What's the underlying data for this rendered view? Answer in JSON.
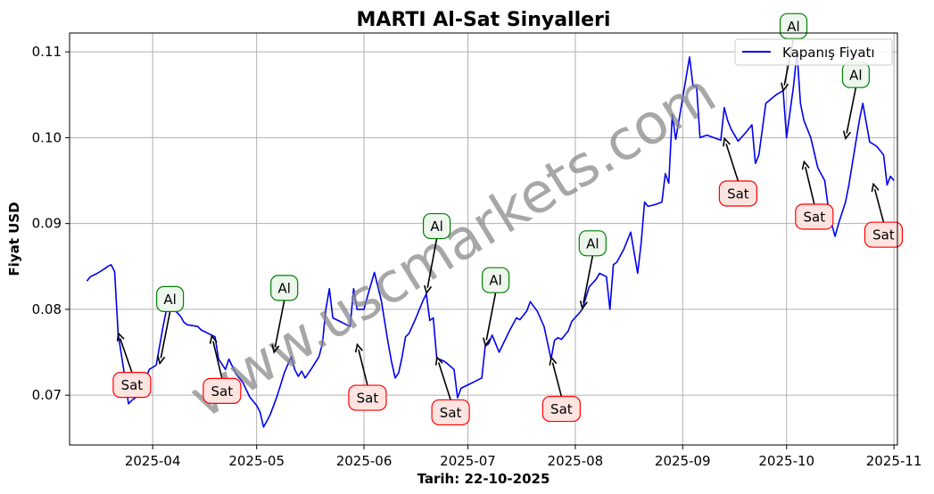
{
  "chart_data": {
    "type": "line",
    "title": "MARTI Al-Sat Sinyalleri",
    "xlabel": "Tarih: 22-10-2025",
    "ylabel": "Fiyat USD",
    "xlim": [
      "2025-03-08",
      "2025-11-02"
    ],
    "ylim": [
      0.0642,
      0.1122
    ],
    "x_ticks": [
      "2025-04",
      "2025-05",
      "2025-06",
      "2025-07",
      "2025-08",
      "2025-09",
      "2025-10",
      "2025-11"
    ],
    "y_ticks": [
      "0.07",
      "0.08",
      "0.09",
      "0.10",
      "0.11"
    ],
    "grid": true,
    "legend_position": "top-right",
    "watermark": "www.uscmarkets.com",
    "colors": {
      "line": "#0000ee",
      "buy_border": "#008000",
      "buy_fill": "#edf7ed",
      "sell_border": "#ff0000",
      "sell_fill": "#fde4e1",
      "grid": "#b0b0b0"
    },
    "series": [
      {
        "name": "Kapanış Fiyatı",
        "points": [
          [
            "2025-03-13",
            0.0833
          ],
          [
            "2025-03-14",
            0.0838
          ],
          [
            "2025-03-16",
            0.0842
          ],
          [
            "2025-03-18",
            0.0847
          ],
          [
            "2025-03-19",
            0.085
          ],
          [
            "2025-03-20",
            0.0852
          ],
          [
            "2025-03-21",
            0.0844
          ],
          [
            "2025-03-22",
            0.0772
          ],
          [
            "2025-03-24",
            0.072
          ],
          [
            "2025-03-25",
            0.069
          ],
          [
            "2025-03-26",
            0.0694
          ],
          [
            "2025-03-28",
            0.07
          ],
          [
            "2025-03-31",
            0.073
          ],
          [
            "2025-04-02",
            0.0735
          ],
          [
            "2025-04-04",
            0.078
          ],
          [
            "2025-04-05",
            0.08
          ],
          [
            "2025-04-06",
            0.0805
          ],
          [
            "2025-04-09",
            0.0792
          ],
          [
            "2025-04-10",
            0.0785
          ],
          [
            "2025-04-11",
            0.0782
          ],
          [
            "2025-04-14",
            0.078
          ],
          [
            "2025-04-15",
            0.0776
          ],
          [
            "2025-04-18",
            0.077
          ],
          [
            "2025-04-19",
            0.0768
          ],
          [
            "2025-04-20",
            0.0742
          ],
          [
            "2025-04-22",
            0.073
          ],
          [
            "2025-04-23",
            0.0742
          ],
          [
            "2025-04-25",
            0.0725
          ],
          [
            "2025-04-27",
            0.0715
          ],
          [
            "2025-04-29",
            0.0698
          ],
          [
            "2025-05-01",
            0.0688
          ],
          [
            "2025-05-02",
            0.068
          ],
          [
            "2025-05-03",
            0.0663
          ],
          [
            "2025-05-04",
            0.067
          ],
          [
            "2025-05-05",
            0.0678
          ],
          [
            "2025-05-07",
            0.07
          ],
          [
            "2025-05-09",
            0.0726
          ],
          [
            "2025-05-11",
            0.0745
          ],
          [
            "2025-05-12",
            0.073
          ],
          [
            "2025-05-13",
            0.0722
          ],
          [
            "2025-05-14",
            0.0728
          ],
          [
            "2025-05-15",
            0.072
          ],
          [
            "2025-05-17",
            0.0732
          ],
          [
            "2025-05-19",
            0.0745
          ],
          [
            "2025-05-20",
            0.076
          ],
          [
            "2025-05-21",
            0.08
          ],
          [
            "2025-05-22",
            0.0824
          ],
          [
            "2025-05-23",
            0.079
          ],
          [
            "2025-05-26",
            0.0784
          ],
          [
            "2025-05-28",
            0.078
          ],
          [
            "2025-05-29",
            0.0824
          ],
          [
            "2025-05-30",
            0.08
          ],
          [
            "2025-06-01",
            0.08
          ],
          [
            "2025-06-02",
            0.0815
          ],
          [
            "2025-06-04",
            0.0843
          ],
          [
            "2025-06-06",
            0.081
          ],
          [
            "2025-06-08",
            0.076
          ],
          [
            "2025-06-09",
            0.0738
          ],
          [
            "2025-06-10",
            0.072
          ],
          [
            "2025-06-11",
            0.0726
          ],
          [
            "2025-06-12",
            0.0745
          ],
          [
            "2025-06-13",
            0.0768
          ],
          [
            "2025-06-14",
            0.0772
          ],
          [
            "2025-06-16",
            0.079
          ],
          [
            "2025-06-18",
            0.081
          ],
          [
            "2025-06-19",
            0.0818
          ],
          [
            "2025-06-20",
            0.0787
          ],
          [
            "2025-06-21",
            0.079
          ],
          [
            "2025-06-22",
            0.0743
          ],
          [
            "2025-06-24",
            0.074
          ],
          [
            "2025-06-25",
            0.0737
          ],
          [
            "2025-06-27",
            0.073
          ],
          [
            "2025-06-28",
            0.0697
          ],
          [
            "2025-06-29",
            0.0708
          ],
          [
            "2025-07-01",
            0.0712
          ],
          [
            "2025-07-03",
            0.0716
          ],
          [
            "2025-07-05",
            0.072
          ],
          [
            "2025-07-06",
            0.0757
          ],
          [
            "2025-07-07",
            0.076
          ],
          [
            "2025-07-08",
            0.077
          ],
          [
            "2025-07-10",
            0.075
          ],
          [
            "2025-07-13",
            0.0775
          ],
          [
            "2025-07-15",
            0.079
          ],
          [
            "2025-07-16",
            0.0788
          ],
          [
            "2025-07-18",
            0.0798
          ],
          [
            "2025-07-19",
            0.0809
          ],
          [
            "2025-07-21",
            0.0798
          ],
          [
            "2025-07-23",
            0.078
          ],
          [
            "2025-07-25",
            0.0742
          ],
          [
            "2025-07-26",
            0.0764
          ],
          [
            "2025-07-27",
            0.0767
          ],
          [
            "2025-07-28",
            0.0765
          ],
          [
            "2025-07-30",
            0.0775
          ],
          [
            "2025-07-31",
            0.0786
          ],
          [
            "2025-08-02",
            0.0795
          ],
          [
            "2025-08-03",
            0.08
          ],
          [
            "2025-08-05",
            0.0826
          ],
          [
            "2025-08-07",
            0.0835
          ],
          [
            "2025-08-08",
            0.0842
          ],
          [
            "2025-08-10",
            0.0838
          ],
          [
            "2025-08-11",
            0.08
          ],
          [
            "2025-08-12",
            0.0852
          ],
          [
            "2025-08-13",
            0.0855
          ],
          [
            "2025-08-15",
            0.087
          ],
          [
            "2025-08-17",
            0.089
          ],
          [
            "2025-08-19",
            0.0842
          ],
          [
            "2025-08-20",
            0.0877
          ],
          [
            "2025-08-21",
            0.0925
          ],
          [
            "2025-08-22",
            0.092
          ],
          [
            "2025-08-24",
            0.0922
          ],
          [
            "2025-08-26",
            0.0925
          ],
          [
            "2025-08-27",
            0.0958
          ],
          [
            "2025-08-28",
            0.0947
          ],
          [
            "2025-08-29",
            0.1027
          ],
          [
            "2025-08-30",
            0.0998
          ],
          [
            "2025-09-02",
            0.107
          ],
          [
            "2025-09-03",
            0.1094
          ],
          [
            "2025-09-04",
            0.106
          ],
          [
            "2025-09-05",
            0.106
          ],
          [
            "2025-09-06",
            0.1
          ],
          [
            "2025-09-08",
            0.1003
          ],
          [
            "2025-09-10",
            0.1
          ],
          [
            "2025-09-12",
            0.0997
          ],
          [
            "2025-09-13",
            0.1035
          ],
          [
            "2025-09-14",
            0.102
          ],
          [
            "2025-09-15",
            0.101
          ],
          [
            "2025-09-17",
            0.0996
          ],
          [
            "2025-09-19",
            0.1005
          ],
          [
            "2025-09-21",
            0.1015
          ],
          [
            "2025-09-22",
            0.097
          ],
          [
            "2025-09-23",
            0.098
          ],
          [
            "2025-09-25",
            0.104
          ],
          [
            "2025-09-28",
            0.105
          ],
          [
            "2025-09-30",
            0.1055
          ],
          [
            "2025-10-01",
            0.1
          ],
          [
            "2025-10-03",
            0.106
          ],
          [
            "2025-10-04",
            0.11
          ],
          [
            "2025-10-05",
            0.104
          ],
          [
            "2025-10-06",
            0.102
          ],
          [
            "2025-10-08",
            0.1
          ],
          [
            "2025-10-10",
            0.0965
          ],
          [
            "2025-10-12",
            0.095
          ],
          [
            "2025-10-13",
            0.092
          ],
          [
            "2025-10-14",
            0.09
          ],
          [
            "2025-10-15",
            0.0885
          ],
          [
            "2025-10-16",
            0.09
          ],
          [
            "2025-10-18",
            0.0925
          ],
          [
            "2025-10-19",
            0.0945
          ],
          [
            "2025-10-20",
            0.097
          ],
          [
            "2025-10-22",
            0.102
          ],
          [
            "2025-10-23",
            0.104
          ],
          [
            "2025-10-25",
            0.0995
          ],
          [
            "2025-10-27",
            0.099
          ],
          [
            "2025-10-29",
            0.098
          ],
          [
            "2025-10-30",
            0.0945
          ],
          [
            "2025-10-31",
            0.0955
          ],
          [
            "2025-11-01",
            0.095
          ]
        ]
      }
    ],
    "signals": [
      {
        "label": "Sat",
        "point": [
          "2025-03-22",
          0.0773
        ],
        "box": [
          "2025-03-26",
          0.0712
        ]
      },
      {
        "label": "Al",
        "point": [
          "2025-04-03",
          0.0736
        ],
        "box": [
          "2025-04-06",
          0.0812
        ]
      },
      {
        "label": "Sat",
        "point": [
          "2025-04-18",
          0.077
        ],
        "box": [
          "2025-04-21",
          0.0705
        ]
      },
      {
        "label": "Al",
        "point": [
          "2025-05-06",
          0.0749
        ],
        "box": [
          "2025-05-09",
          0.0825
        ]
      },
      {
        "label": "Sat",
        "point": [
          "2025-05-30",
          0.076
        ],
        "box": [
          "2025-06-02",
          0.0697
        ]
      },
      {
        "label": "Al",
        "point": [
          "2025-06-19",
          0.0818
        ],
        "box": [
          "2025-06-22",
          0.0897
        ]
      },
      {
        "label": "Sat",
        "point": [
          "2025-06-22",
          0.0745
        ],
        "box": [
          "2025-06-26",
          0.068
        ]
      },
      {
        "label": "Al",
        "point": [
          "2025-07-06",
          0.0757
        ],
        "box": [
          "2025-07-09",
          0.0834
        ]
      },
      {
        "label": "Sat",
        "point": [
          "2025-07-25",
          0.0745
        ],
        "box": [
          "2025-07-28",
          0.0684
        ]
      },
      {
        "label": "Al",
        "point": [
          "2025-08-03",
          0.08
        ],
        "box": [
          "2025-08-06",
          0.0877
        ]
      },
      {
        "label": "Sat",
        "point": [
          "2025-09-13",
          0.1
        ],
        "box": [
          "2025-09-17",
          0.0935
        ]
      },
      {
        "label": "Al",
        "point": [
          "2025-09-30",
          0.1054
        ],
        "box": [
          "2025-10-03",
          0.113
        ]
      },
      {
        "label": "Sat",
        "point": [
          "2025-10-06",
          0.0973
        ],
        "box": [
          "2025-10-09",
          0.0908
        ]
      },
      {
        "label": "Al",
        "point": [
          "2025-10-18",
          0.0998
        ],
        "box": [
          "2025-10-21",
          0.1073
        ]
      },
      {
        "label": "Sat",
        "point": [
          "2025-10-26",
          0.0947
        ],
        "box": [
          "2025-10-29",
          0.0887
        ]
      }
    ]
  }
}
